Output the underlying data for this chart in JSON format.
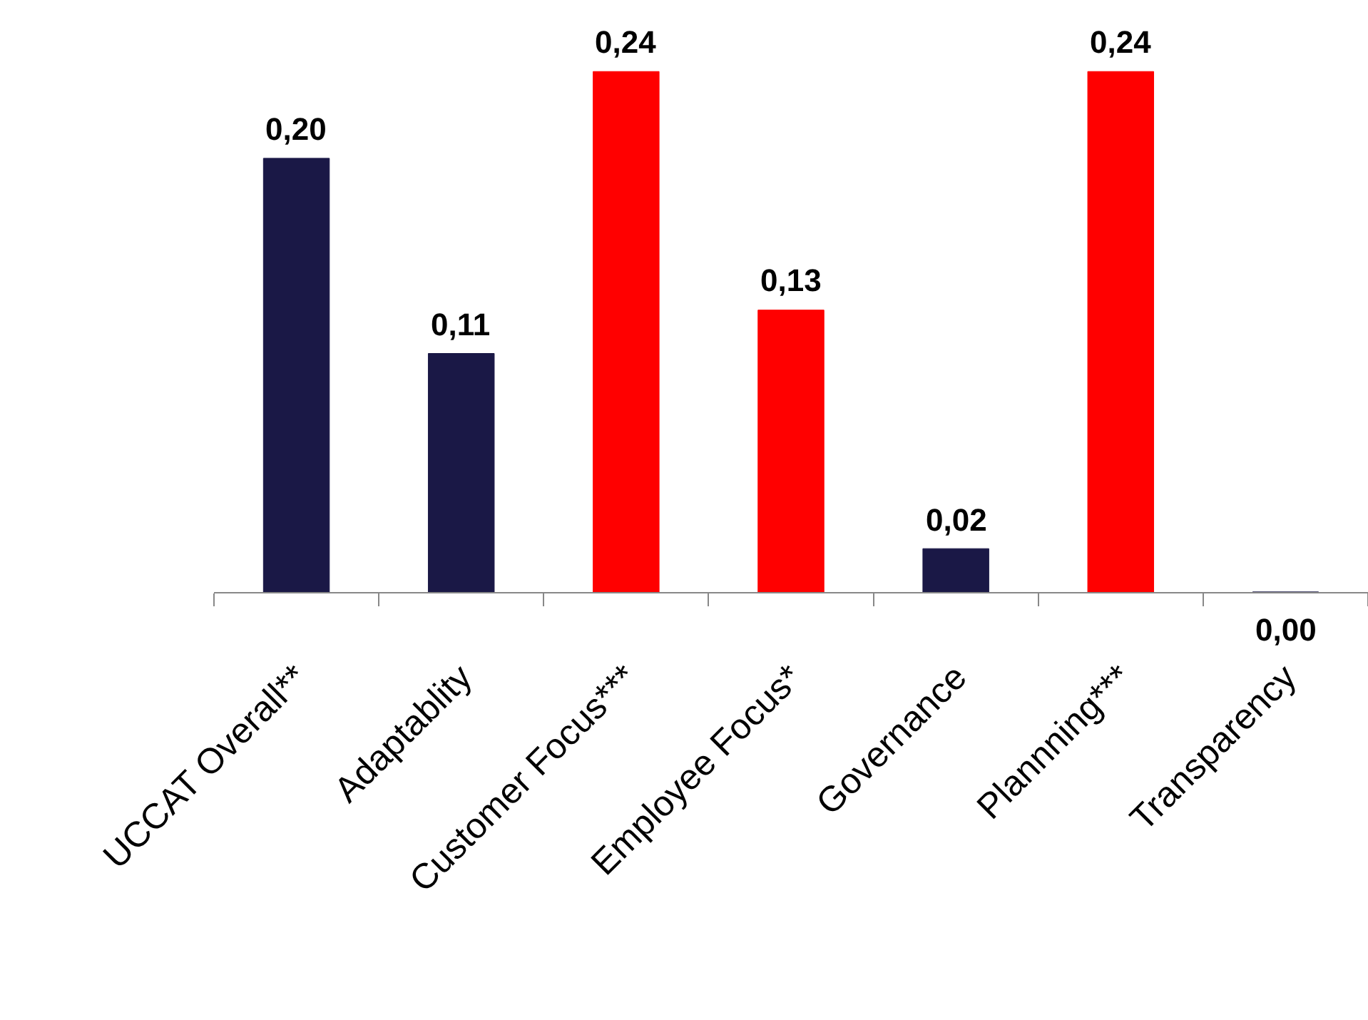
{
  "chart_data": {
    "type": "bar",
    "categories": [
      "UCCAT Overall**",
      "Adaptablity",
      "Customer Focus***",
      "Employee Focus*",
      "Governance",
      "Plannning***",
      "Transparency"
    ],
    "values": [
      0.2,
      0.11,
      0.24,
      0.13,
      0.02,
      0.24,
      0.0
    ],
    "value_labels": [
      "0,20",
      "0,11",
      "0,24",
      "0,13",
      "0,02",
      "0,24",
      "0,00"
    ],
    "colors": [
      "#1a1846",
      "#1a1846",
      "#ff0000",
      "#ff0000",
      "#1a1846",
      "#ff0000",
      "#1a1846"
    ],
    "grid": false,
    "legend": false
  }
}
